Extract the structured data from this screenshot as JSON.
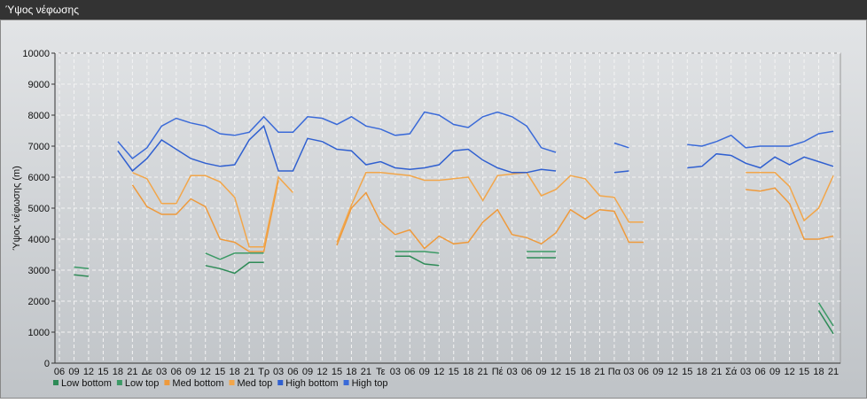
{
  "window_title": "Ύψος νέφωσης",
  "chart_data": {
    "type": "line",
    "ylabel": "Ύψος νέφωσης (m)",
    "categories": [
      "06",
      "09",
      "12",
      "15",
      "18",
      "21",
      "Δε",
      "03",
      "06",
      "09",
      "12",
      "15",
      "18",
      "21",
      "Τρ",
      "03",
      "06",
      "09",
      "12",
      "15",
      "18",
      "21",
      "Τε",
      "03",
      "06",
      "09",
      "12",
      "15",
      "18",
      "21",
      "Πέ",
      "03",
      "06",
      "09",
      "12",
      "15",
      "18",
      "21",
      "Πα",
      "03",
      "06",
      "09",
      "12",
      "15",
      "18",
      "21",
      "Σά",
      "03",
      "06",
      "09",
      "12",
      "15",
      "18",
      "21"
    ],
    "ylim": [
      0,
      10000
    ],
    "yticks": [
      0,
      1000,
      2000,
      3000,
      4000,
      5000,
      6000,
      7000,
      8000,
      9000,
      10000
    ],
    "grid": true,
    "legend": "bottom-left",
    "series": [
      {
        "name": "Low bottom",
        "color": "#2e8b57",
        "values": [
          null,
          2850,
          2800,
          null,
          null,
          null,
          null,
          null,
          null,
          null,
          3150,
          3050,
          2900,
          3250,
          3250,
          null,
          null,
          null,
          null,
          null,
          null,
          null,
          null,
          3450,
          3450,
          3200,
          3150,
          null,
          null,
          null,
          null,
          null,
          3400,
          3400,
          3400,
          null,
          null,
          null,
          null,
          null,
          null,
          null,
          null,
          null,
          null,
          null,
          null,
          null,
          null,
          null,
          null,
          null,
          1700,
          950
        ]
      },
      {
        "name": "Low top",
        "color": "#3c9a66",
        "values": [
          null,
          3100,
          3050,
          null,
          null,
          null,
          null,
          null,
          null,
          null,
          3550,
          3350,
          3550,
          3550,
          3550,
          null,
          null,
          null,
          null,
          null,
          null,
          null,
          null,
          3600,
          3600,
          3600,
          3550,
          null,
          null,
          null,
          null,
          null,
          3600,
          3600,
          3600,
          null,
          null,
          null,
          null,
          null,
          null,
          null,
          null,
          null,
          null,
          null,
          null,
          null,
          null,
          null,
          null,
          null,
          1950,
          1200
        ]
      },
      {
        "name": "Med bottom",
        "color": "#ee9a3c",
        "values": [
          null,
          null,
          null,
          null,
          null,
          5750,
          5050,
          4800,
          4800,
          5300,
          5050,
          4000,
          3900,
          3600,
          3600,
          5900,
          null,
          null,
          null,
          3800,
          5000,
          5500,
          4550,
          4150,
          4300,
          3700,
          4100,
          3850,
          3900,
          4550,
          4950,
          4150,
          4050,
          3850,
          4200,
          4950,
          4650,
          4950,
          4900,
          3900,
          3900,
          null,
          null,
          null,
          null,
          null,
          null,
          5600,
          5550,
          5650,
          5150,
          4000,
          4000,
          4100
        ]
      },
      {
        "name": "Med top",
        "color": "#f2a64a",
        "values": [
          null,
          null,
          null,
          null,
          null,
          6150,
          5950,
          5150,
          5150,
          6050,
          6050,
          5850,
          5350,
          3750,
          3750,
          6000,
          5500,
          null,
          null,
          3900,
          5100,
          6150,
          6150,
          6100,
          6050,
          5900,
          5900,
          5950,
          6000,
          5250,
          6050,
          6100,
          6150,
          5400,
          5600,
          6050,
          5950,
          5400,
          5350,
          4550,
          4550,
          null,
          null,
          null,
          null,
          null,
          null,
          6150,
          6150,
          6150,
          5700,
          4600,
          5000,
          6050
        ]
      },
      {
        "name": "High bottom",
        "color": "#3060d0",
        "values": [
          null,
          null,
          null,
          null,
          6850,
          6200,
          6600,
          7200,
          6900,
          6600,
          6450,
          6350,
          6400,
          7200,
          7650,
          6200,
          6200,
          7250,
          7150,
          6900,
          6850,
          6400,
          6500,
          6300,
          6250,
          6300,
          6400,
          6850,
          6900,
          6550,
          6300,
          6150,
          6150,
          6250,
          6200,
          null,
          null,
          null,
          6150,
          6200,
          null,
          null,
          null,
          6300,
          6350,
          6750,
          6700,
          6450,
          6300,
          6650,
          6400,
          6650,
          6500,
          6350
        ]
      },
      {
        "name": "High top",
        "color": "#3a6ad8",
        "values": [
          null,
          null,
          null,
          null,
          7150,
          6600,
          6950,
          7650,
          7900,
          7750,
          7650,
          7400,
          7350,
          7450,
          7950,
          7450,
          7450,
          7950,
          7900,
          7700,
          7950,
          7650,
          7550,
          7350,
          7400,
          8100,
          8000,
          7700,
          7600,
          7950,
          8100,
          7950,
          7650,
          6950,
          6800,
          null,
          null,
          null,
          7100,
          6950,
          null,
          null,
          null,
          7050,
          7000,
          7150,
          7350,
          6950,
          7000,
          7000,
          7000,
          7150,
          7400,
          7480
        ]
      }
    ]
  }
}
